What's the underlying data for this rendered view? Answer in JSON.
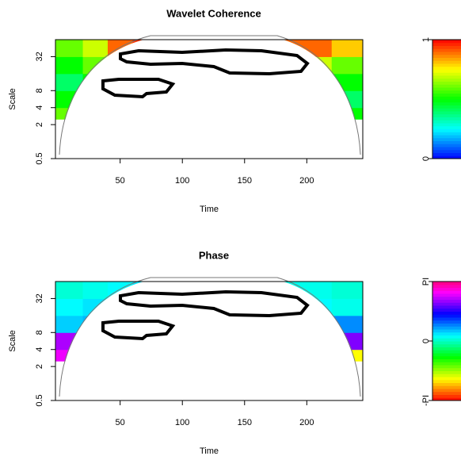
{
  "chart_data": [
    {
      "type": "heatmap",
      "title": "Wavelet Coherence",
      "xlabel": "Time",
      "ylabel": "Scale",
      "xlim": [
        -2,
        245
      ],
      "xticks": [
        50,
        100,
        150,
        200
      ],
      "ylim": [
        0.5,
        64
      ],
      "yticks": [
        0.5,
        2,
        4,
        8,
        32
      ],
      "log_y": true,
      "time_edges": [
        -2,
        20,
        40,
        60,
        80,
        100,
        120,
        140,
        160,
        180,
        200,
        220,
        245
      ],
      "scale_edges": [
        2.5,
        4,
        8,
        16,
        32,
        64
      ],
      "z": [
        [
          0.6,
          0.3,
          0.5,
          0.7,
          0.4,
          0.8,
          0.3,
          0.6,
          0.5,
          0.4,
          0.7,
          0.5
        ],
        [
          0.5,
          0.4,
          0.6,
          0.8,
          0.3,
          0.9,
          0.5,
          0.7,
          0.4,
          0.6,
          0.5,
          0.4
        ],
        [
          0.4,
          0.5,
          0.7,
          0.9,
          0.6,
          0.5,
          0.7,
          0.4,
          0.5,
          0.7,
          0.6,
          0.5
        ],
        [
          0.5,
          0.6,
          0.8,
          0.9,
          0.8,
          0.7,
          0.8,
          0.9,
          0.9,
          0.8,
          0.7,
          0.6
        ],
        [
          0.6,
          0.7,
          0.9,
          0.95,
          0.95,
          0.9,
          0.95,
          0.95,
          0.95,
          0.9,
          0.9,
          0.8
        ]
      ],
      "zlim": [
        0,
        1
      ],
      "zticks": [
        0,
        1
      ],
      "colormap": "rainbow"
    },
    {
      "type": "heatmap",
      "title": "Phase",
      "xlabel": "Time",
      "ylabel": "Scale",
      "xlim": [
        -2,
        245
      ],
      "xticks": [
        50,
        100,
        150,
        200
      ],
      "ylim": [
        0.5,
        64
      ],
      "yticks": [
        0.5,
        2,
        4,
        8,
        32
      ],
      "log_y": true,
      "time_edges": [
        -2,
        20,
        40,
        60,
        80,
        100,
        120,
        140,
        160,
        180,
        200,
        220,
        245
      ],
      "scale_edges": [
        2.5,
        4,
        8,
        16,
        32,
        64
      ],
      "z": [
        [
          2.5,
          -2.0,
          1.8,
          2.8,
          -1.5,
          -2.5,
          -1.0,
          2.0,
          -2.2,
          0.5,
          2.5,
          -2.0
        ],
        [
          2.2,
          2.6,
          -1.8,
          2.4,
          -1.2,
          -2.0,
          2.6,
          -2.4,
          1.5,
          0.8,
          -1.5,
          2.0
        ],
        [
          0.5,
          0.6,
          1.2,
          2.3,
          -1.5,
          2.5,
          0.3,
          0.2,
          0.4,
          0.3,
          1.0,
          0.8
        ],
        [
          0.3,
          0.4,
          0.6,
          0.7,
          0.5,
          0.2,
          0.1,
          0.2,
          0.5,
          0.3,
          0.3,
          0.2
        ],
        [
          0.1,
          0.2,
          0.3,
          0.4,
          0.4,
          0.3,
          0.2,
          0.1,
          0.1,
          0.2,
          0.2,
          0.1
        ]
      ],
      "zlim": [
        -3.14159,
        3.14159
      ],
      "zticks": [
        {
          "value": -3.14159,
          "label": "-PI"
        },
        0,
        {
          "value": 3.14159,
          "label": "PI"
        }
      ],
      "colormap": "cyclic"
    }
  ]
}
